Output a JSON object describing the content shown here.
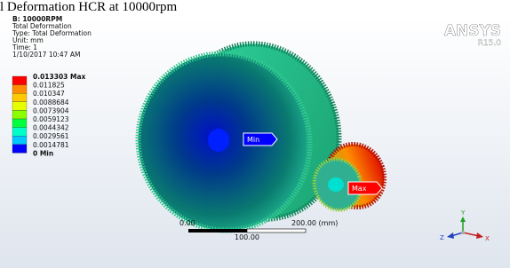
{
  "caption": "l Deformation HCR at 10000rpm",
  "header": {
    "title": "B: 10000RPM",
    "lines": [
      "Total Deformation",
      "Type: Total Deformation",
      "Unit: mm",
      "Time: 1",
      "1/10/2017 10:47 AM"
    ]
  },
  "legend": {
    "labels": [
      "0.013303 Max",
      "0.011825",
      "0.010347",
      "0.0088684",
      "0.0073904",
      "0.0059123",
      "0.0044342",
      "0.0029561",
      "0.0014781",
      "0 Min"
    ],
    "colors": [
      "#ff0000",
      "#ff8c00",
      "#ffc800",
      "#e6ff00",
      "#8cff00",
      "#00ff3c",
      "#00ffc8",
      "#00c8ff",
      "#0000ff"
    ]
  },
  "logo": {
    "name": "ANSYS",
    "version": "R15.0"
  },
  "probes": {
    "min": "Min",
    "max": "Max"
  },
  "scale": {
    "left": "0.00",
    "right": "200.00 (mm)",
    "middle": "100.00"
  },
  "triad": {
    "y": "Y",
    "z": "Z",
    "x": "X"
  }
}
